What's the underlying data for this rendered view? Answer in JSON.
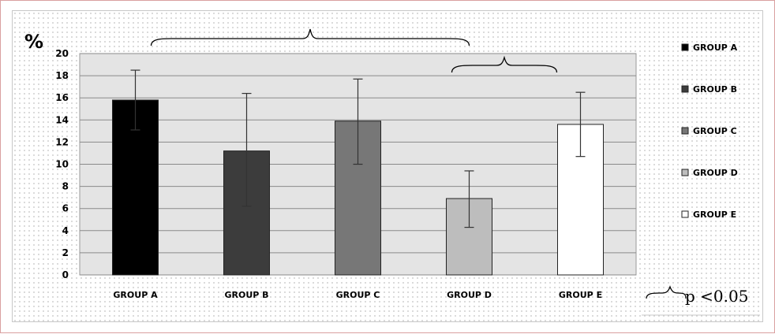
{
  "chart_data": {
    "type": "bar",
    "unit_label": "%",
    "categories": [
      "GROUP A",
      "GROUP B",
      "GROUP C",
      "GROUP D",
      "GROUP E"
    ],
    "values": [
      15.8,
      11.2,
      13.9,
      6.9,
      13.6
    ],
    "error_low": [
      13.1,
      6.2,
      10.0,
      4.3,
      10.7
    ],
    "error_high": [
      18.5,
      16.4,
      17.7,
      9.4,
      16.5
    ],
    "colors": [
      "#000000",
      "#3c3c3c",
      "#777777",
      "#bdbdbd",
      "#ffffff"
    ],
    "ylim": [
      0,
      20
    ],
    "yticks": [
      0,
      2,
      4,
      6,
      8,
      10,
      12,
      14,
      16,
      18,
      20
    ],
    "ytick_labels": [
      "0",
      "2",
      "4",
      "6",
      "8",
      "10",
      "12",
      "14",
      "16",
      "18",
      "20"
    ],
    "grid": true,
    "legend_position": "right",
    "legend": [
      {
        "label": "GROUP A",
        "color": "#000000"
      },
      {
        "label": "GROUP B",
        "color": "#3c3c3c"
      },
      {
        "label": "GROUP C",
        "color": "#777777"
      },
      {
        "label": "GROUP D",
        "color": "#bdbdbd"
      },
      {
        "label": "GROUP E",
        "color": "#ffffff"
      }
    ],
    "significance_brackets": [
      {
        "from": "GROUP A",
        "to": "GROUP D"
      },
      {
        "from": "GROUP D",
        "to": "GROUP E"
      }
    ],
    "significance_note": "p <0.05"
  }
}
